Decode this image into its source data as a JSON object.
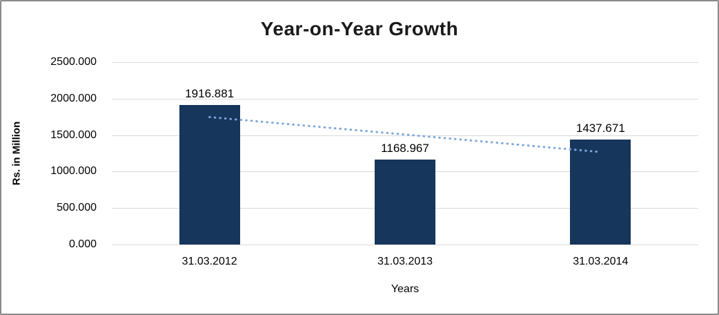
{
  "chart": {
    "title": "Year-on-Year Growth",
    "ylabel": "Rs. in Million",
    "xlabel": "Years"
  },
  "chart_data": {
    "type": "bar",
    "title": "Year-on-Year Growth",
    "categories": [
      "31.03.2012",
      "31.03.2013",
      "31.03.2014"
    ],
    "values": [
      1916.881,
      1168.967,
      1437.671
    ],
    "data_labels": [
      "1916.881",
      "1168.967",
      "1437.671"
    ],
    "xlabel": "Years",
    "ylabel": "Rs. in Million",
    "ylim": [
      0,
      2500
    ],
    "ytick_labels": [
      "0.000",
      "500.000",
      "1000.000",
      "1500.000",
      "2000.000",
      "2500.000"
    ],
    "ytick_values": [
      0,
      500,
      1000,
      1500,
      2000,
      2500
    ],
    "grid": true,
    "legend": false,
    "bar_color": "#16365c",
    "gridline_color": "#d9d9d9",
    "trendline": {
      "type": "linear",
      "style": "dotted",
      "color": "#7da7d9",
      "values_at_categories": [
        1747.449,
        1507.84,
        1268.231
      ]
    }
  }
}
